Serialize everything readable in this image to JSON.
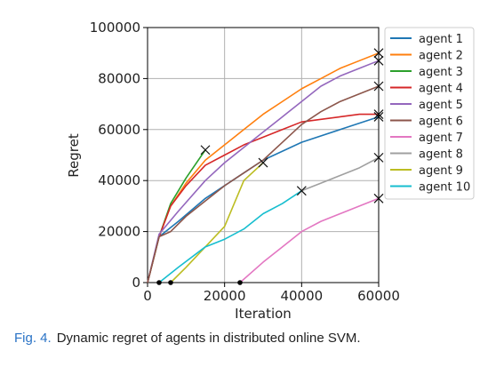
{
  "caption": {
    "label": "Fig. 4.",
    "text": "Dynamic regret of agents in distributed online SVM."
  },
  "chart_data": {
    "type": "line",
    "xlabel": "Iteration",
    "ylabel": "Regret",
    "xlim": [
      0,
      60000
    ],
    "ylim": [
      0,
      100000
    ],
    "xticks": [
      0,
      20000,
      40000,
      60000
    ],
    "yticks": [
      0,
      20000,
      40000,
      60000,
      80000,
      100000
    ],
    "grid": true,
    "legend_position": "right",
    "series": [
      {
        "name": "agent 1",
        "color": "#1f77b4",
        "x": [
          0,
          3000,
          8000,
          15000,
          22000,
          30000,
          40000,
          50000,
          60000
        ],
        "y": [
          0,
          18000,
          24000,
          33000,
          40000,
          48000,
          55000,
          60000,
          65000
        ]
      },
      {
        "name": "agent 2",
        "color": "#ff7f0e",
        "x": [
          0,
          3000,
          6000,
          10000,
          15000,
          20000,
          25000,
          30000,
          35000,
          40000,
          45000,
          50000,
          55000,
          60000
        ],
        "y": [
          0,
          18000,
          30000,
          39000,
          48000,
          54000,
          60000,
          66000,
          71000,
          76000,
          80000,
          84000,
          87000,
          90000
        ]
      },
      {
        "name": "agent 3",
        "color": "#2ca02c",
        "x": [
          0,
          3000,
          6000,
          10000,
          15000
        ],
        "y": [
          0,
          18000,
          31000,
          41000,
          52000
        ],
        "end_marker": true
      },
      {
        "name": "agent 4",
        "color": "#d62728",
        "x": [
          0,
          3000,
          6000,
          10000,
          15000,
          20000,
          25000,
          30000,
          35000,
          40000,
          45000,
          50000,
          55000,
          60000
        ],
        "y": [
          0,
          18000,
          30000,
          38000,
          46000,
          50000,
          54000,
          57000,
          60000,
          63000,
          64000,
          65000,
          66000,
          66000
        ]
      },
      {
        "name": "agent 5",
        "color": "#9467bd",
        "x": [
          0,
          3000,
          8000,
          15000,
          20000,
          25000,
          30000,
          35000,
          40000,
          45000,
          50000,
          55000,
          60000
        ],
        "y": [
          0,
          19000,
          28000,
          40000,
          47000,
          53000,
          59000,
          65000,
          71000,
          77000,
          81000,
          84000,
          87000
        ]
      },
      {
        "name": "agent 6",
        "color": "#8c564b",
        "x": [
          0,
          3000,
          6000,
          10000,
          15000,
          20000,
          25000,
          30000,
          35000,
          40000,
          45000,
          50000,
          55000,
          60000
        ],
        "y": [
          0,
          18000,
          20000,
          26000,
          32000,
          38000,
          43000,
          48000,
          55000,
          62000,
          67000,
          71000,
          74000,
          77000
        ]
      },
      {
        "name": "agent 7",
        "color": "#e377c2",
        "x": [
          24000,
          30000,
          35000,
          40000,
          45000,
          50000,
          55000,
          60000
        ],
        "y": [
          0,
          8000,
          14000,
          20000,
          24000,
          27000,
          30000,
          33000
        ]
      },
      {
        "name": "agent 8",
        "color": "#a0a0a0",
        "x": [
          40000,
          45000,
          50000,
          55000,
          60000
        ],
        "y": [
          36000,
          39000,
          42000,
          45000,
          49000
        ],
        "end_marker": true
      },
      {
        "name": "agent 9",
        "color": "#bcbd22",
        "x": [
          6000,
          10000,
          15000,
          20000,
          25000,
          30000
        ],
        "y": [
          0,
          6000,
          14000,
          22000,
          40000,
          47000
        ]
      },
      {
        "name": "agent 10",
        "color": "#17becf",
        "x": [
          3000,
          8000,
          15000,
          20000,
          25000,
          30000,
          35000,
          40000
        ],
        "y": [
          0,
          6000,
          14000,
          17000,
          21000,
          27000,
          31000,
          36000
        ]
      }
    ],
    "start_markers": [
      {
        "x": 3000,
        "y": 0
      },
      {
        "x": 6000,
        "y": 0
      },
      {
        "x": 24000,
        "y": 0
      }
    ],
    "end_markers": [
      {
        "x": 15000,
        "y": 52000
      },
      {
        "x": 30000,
        "y": 47000
      },
      {
        "x": 40000,
        "y": 36000
      },
      {
        "x": 60000,
        "y": 90000
      },
      {
        "x": 60000,
        "y": 87000
      },
      {
        "x": 60000,
        "y": 77000
      },
      {
        "x": 60000,
        "y": 66000
      },
      {
        "x": 60000,
        "y": 65000
      },
      {
        "x": 60000,
        "y": 49000
      },
      {
        "x": 60000,
        "y": 33000
      }
    ]
  }
}
